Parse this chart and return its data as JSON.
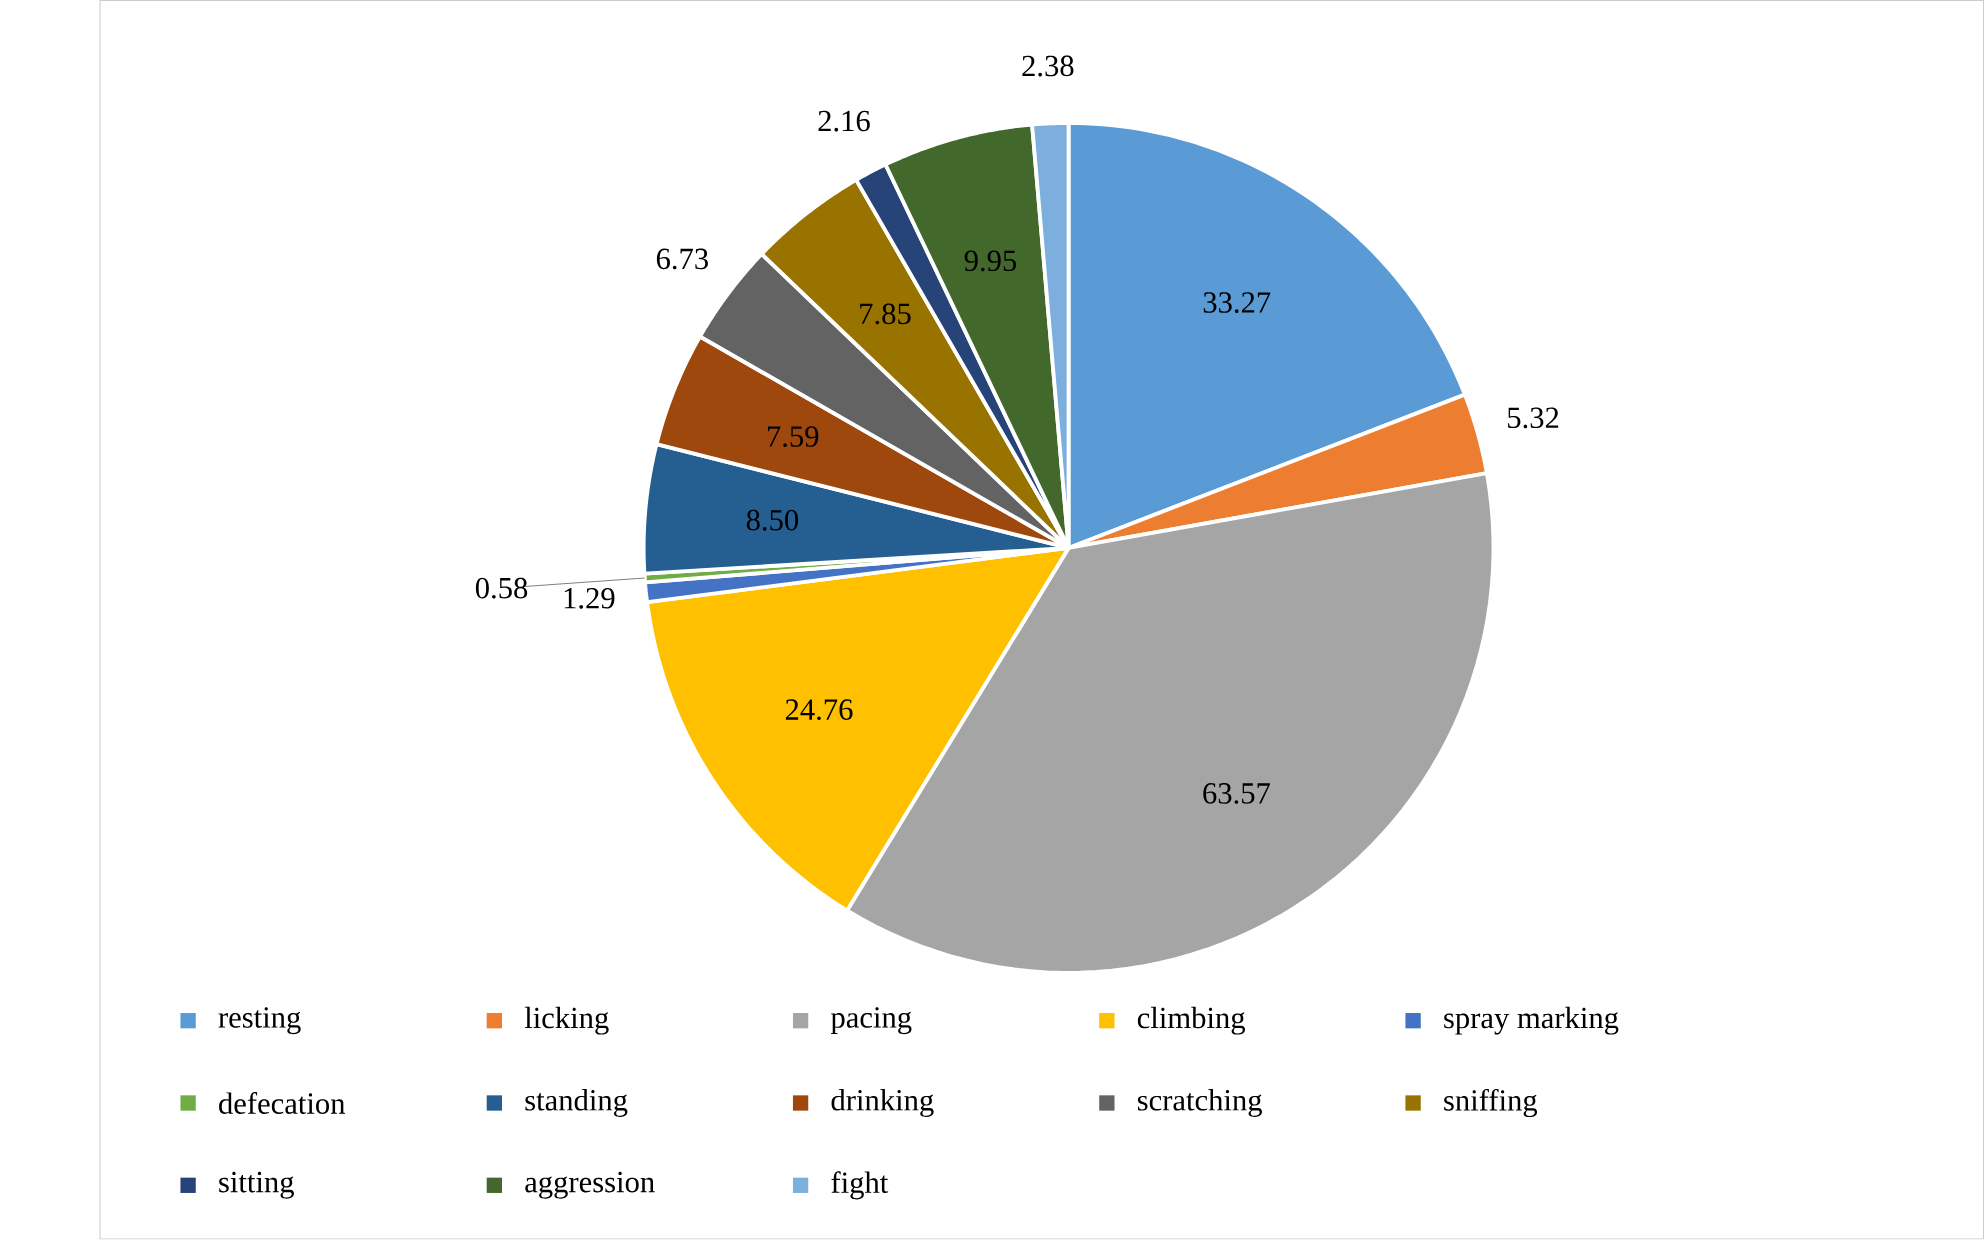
{
  "chart_data": {
    "type": "pie",
    "categories": [
      "resting",
      "licking",
      "pacing",
      "climbing",
      "spray marking",
      "defecation",
      "standing",
      "drinking",
      "scratching",
      "sniffing",
      "sitting",
      "aggression",
      "fight"
    ],
    "values": [
      33.27,
      5.32,
      63.57,
      24.76,
      1.29,
      0.58,
      8.5,
      7.59,
      6.73,
      7.85,
      2.16,
      9.95,
      2.38
    ],
    "colors": [
      "#5b9bd5",
      "#ed7d31",
      "#a5a5a5",
      "#ffc000",
      "#4472c4",
      "#70ad47",
      "#255e91",
      "#9e480e",
      "#636363",
      "#997300",
      "#264478",
      "#43682b",
      "#7cafdd"
    ],
    "value_labels": [
      "33.27",
      "5.32",
      "63.57",
      "24.76",
      "1.29",
      "0.58",
      "8.50",
      "7.59",
      "6.73",
      "7.85",
      "2.16",
      "9.95",
      "2.38"
    ],
    "legend": "bottom"
  }
}
